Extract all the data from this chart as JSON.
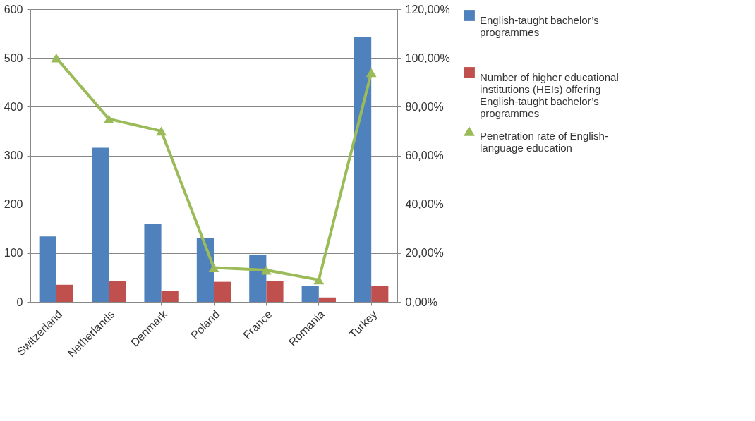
{
  "chart_data": {
    "type": "bar",
    "categories": [
      "Switzerland",
      "Netherlands",
      "Denmark",
      "Poland",
      "France",
      "Romania",
      "Turkey"
    ],
    "series": [
      {
        "name": "English-taught bachelor’s programmes",
        "color": "#4f81bd",
        "values": [
          134,
          316,
          159,
          131,
          96,
          32,
          542
        ]
      },
      {
        "name": "Number of higher educational institutions (HEIs) offering English-taught bachelor’s programmes",
        "color": "#c0504d",
        "values": [
          35,
          42,
          23,
          41,
          42,
          9,
          32
        ]
      },
      {
        "name": "Penetration rate of English-language education",
        "type": "line",
        "axis": "y2",
        "color": "#9bbb59",
        "marker": "triangle",
        "values": [
          100,
          75,
          70,
          14,
          13,
          9,
          94
        ]
      }
    ],
    "ylim": [
      0,
      600
    ],
    "yticks": [
      0,
      100,
      200,
      300,
      400,
      500,
      600
    ],
    "y2lim": [
      0,
      120
    ],
    "y2ticks": [
      {
        "value": 0,
        "label": "0,00%"
      },
      {
        "value": 20,
        "label": "20,00%"
      },
      {
        "value": 40,
        "label": "40,00%"
      },
      {
        "value": 60,
        "label": "60,00%"
      },
      {
        "value": 80,
        "label": "80,00%"
      },
      {
        "value": 100,
        "label": "100,00%"
      },
      {
        "value": 120,
        "label": "120,00%"
      }
    ],
    "grid": "y",
    "legend": "right"
  }
}
